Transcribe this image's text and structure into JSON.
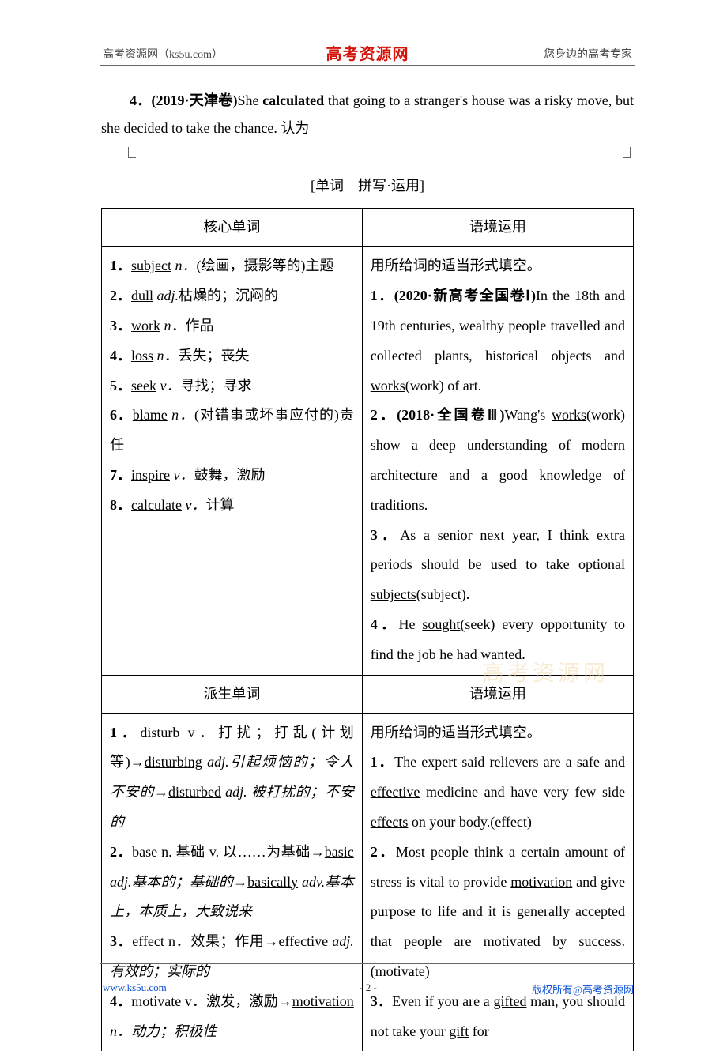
{
  "header": {
    "left": "高考资源网（ks5u.com）",
    "center": "高考资源网",
    "right": "您身边的高考专家"
  },
  "q4": {
    "prefix": "4．(2019·天津卷)",
    "text_before": "She ",
    "bold_word": "calculated",
    "text_after": " that going to a stranger's house was a risky move, but she decided to take the chance. ",
    "answer": "认为"
  },
  "section_title": "[单词　拼写·运用]",
  "headers": {
    "core_left": "核心单词",
    "core_right": "语境运用",
    "deriv_left": "派生单词",
    "deriv_right": "语境运用"
  },
  "core_left": [
    {
      "n": "1．",
      "w": "subject",
      "pos": " n．",
      "def": "(绘画，摄影等的)主题"
    },
    {
      "n": "2．",
      "w": "dull",
      "pos": " adj.",
      "def": "枯燥的；沉闷的"
    },
    {
      "n": "3．",
      "w": "work",
      "pos": " n．",
      "def": "作品"
    },
    {
      "n": "4．",
      "w": "loss",
      "pos": " n．",
      "def": "丢失；丧失"
    },
    {
      "n": "5．",
      "w": "seek",
      "pos": " v．",
      "def": "寻找；寻求"
    },
    {
      "n": "6．",
      "w": "blame",
      "pos": " n．",
      "def": "(对错事或坏事应付的)责任"
    },
    {
      "n": "7．",
      "w": "inspire",
      "pos": " v．",
      "def": "鼓舞，激励"
    },
    {
      "n": "8．",
      "w": "calculate",
      "pos": " v．",
      "def": "计算"
    }
  ],
  "core_right_intro": "用所给词的适当形式填空。",
  "core_right": [
    {
      "n": "1．",
      "src": "(2020·新高考全国卷Ⅰ)",
      "pre": "In the 18th and 19th centuries, wealthy people travelled and collected plants, historical objects and ",
      "ans": "works",
      "paren": "(work)",
      "post": " of art."
    },
    {
      "n": "2．",
      "src": "(2018·全国卷Ⅲ)",
      "pre": "Wang's ",
      "ans": "works",
      "paren": "(work)",
      "post": " show a deep understanding of modern architecture and a good knowledge of traditions."
    },
    {
      "n": "3．",
      "src": "",
      "pre": "As a senior next year, I think extra periods should be used to take optional ",
      "ans": "subjects",
      "paren": "(subject)",
      "post": "."
    },
    {
      "n": "4．",
      "src": "",
      "pre": "He ",
      "ans": "sought",
      "paren": "(seek)",
      "post": " every opportunity to find the job he had wanted."
    }
  ],
  "deriv_left": [
    {
      "n": "1．",
      "body": "disturb v．打扰；打乱(计划等)→",
      "u1": "disturbing",
      "mid1": " adj.引起烦恼的；令人不安的→",
      "u2": "disturbed",
      "mid2": " adj. 被打扰的；不安的"
    },
    {
      "n": "2．",
      "body": "base n. 基础 v. 以……为基础→",
      "u1": "basic",
      "mid1": " adj.基本的；基础的→",
      "u2": "basically",
      "mid2": " adv.基本上，本质上，大致说来"
    },
    {
      "n": "3．",
      "body": "effect n．效果；作用→",
      "u1": "effective",
      "mid1": " adj.有效的；实际的",
      "u2": "",
      "mid2": ""
    },
    {
      "n": "4．",
      "body": "motivate v．激发，激励→",
      "u1": "motivation",
      "mid1": " n．动力；积极性",
      "u2": "",
      "mid2": ""
    }
  ],
  "deriv_right_intro": "用所给词的适当形式填空。",
  "deriv_right": [
    {
      "n": "1．",
      "pre": "The expert said relievers are a safe and ",
      "a1": "effective",
      "mid": " medicine and have very few side ",
      "a2": "effects",
      "post": " on your body.(effect)"
    },
    {
      "n": "2．",
      "pre": "Most people think a certain amount of stress is vital to provide ",
      "a1": "motivation",
      "mid": " and give purpose to life and it is generally accepted that people are ",
      "a2": "motivated",
      "post": " by success.(motivate)"
    },
    {
      "n": "3．",
      "pre": "Even if you are a ",
      "a1": "gifted",
      "mid": " man, you should not take your ",
      "a2": "gift",
      "post": " for"
    }
  ],
  "watermark": "高考资源网",
  "footer": {
    "left": "www.ks5u.com",
    "center": "- 2 -",
    "right": "版权所有@高考资源网"
  },
  "colors": {
    "brand_red": "#d4140a",
    "link_blue": "#0b4fd4",
    "text": "#000000",
    "rule": "#666666",
    "watermark": "#f3d9a8",
    "background": "#ffffff"
  }
}
